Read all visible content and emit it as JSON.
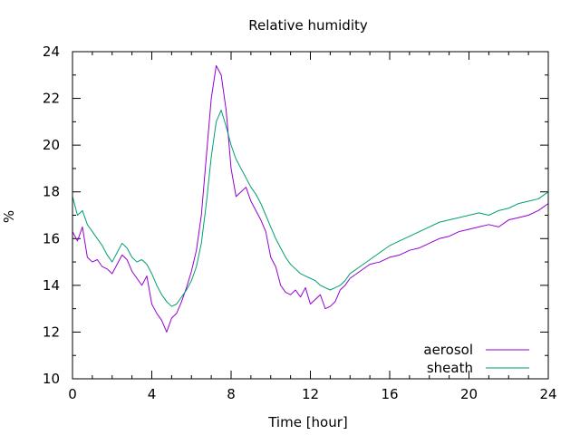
{
  "chart_data": {
    "type": "line",
    "title": "Relative humidity",
    "xlabel": "Time [hour]",
    "ylabel": "%",
    "xlim": [
      0,
      24
    ],
    "ylim": [
      10,
      24
    ],
    "x_ticks": [
      0,
      4,
      8,
      12,
      16,
      20,
      24
    ],
    "y_ticks": [
      10,
      12,
      14,
      16,
      18,
      20,
      22,
      24
    ],
    "grid": false,
    "legend_position": "bottom-right",
    "series": [
      {
        "name": "aerosol",
        "color": "#9400d3",
        "x": [
          0,
          0.25,
          0.5,
          0.75,
          1,
          1.25,
          1.5,
          1.75,
          2,
          2.25,
          2.5,
          2.75,
          3,
          3.25,
          3.5,
          3.75,
          4,
          4.25,
          4.5,
          4.75,
          5,
          5.25,
          5.5,
          5.75,
          6,
          6.25,
          6.5,
          6.75,
          7,
          7.25,
          7.5,
          7.75,
          8,
          8.25,
          8.5,
          8.75,
          9,
          9.25,
          9.5,
          9.75,
          10,
          10.25,
          10.5,
          10.75,
          11,
          11.25,
          11.5,
          11.75,
          12,
          12.25,
          12.5,
          12.75,
          13,
          13.25,
          13.5,
          13.75,
          14,
          14.5,
          15,
          15.5,
          16,
          16.5,
          17,
          17.5,
          18,
          18.5,
          19,
          19.5,
          20,
          20.5,
          21,
          21.5,
          22,
          22.5,
          23,
          23.5,
          24
        ],
        "y": [
          16.3,
          15.9,
          16.5,
          15.2,
          15.0,
          15.1,
          14.8,
          14.7,
          14.5,
          14.9,
          15.3,
          15.1,
          14.6,
          14.3,
          14.0,
          14.4,
          13.2,
          12.8,
          12.5,
          12.0,
          12.6,
          12.8,
          13.3,
          13.9,
          14.6,
          15.5,
          17.0,
          19.5,
          22.0,
          23.4,
          23.0,
          21.5,
          19.0,
          17.8,
          18.0,
          18.2,
          17.6,
          17.2,
          16.8,
          16.3,
          15.2,
          14.8,
          14.0,
          13.7,
          13.6,
          13.8,
          13.5,
          13.9,
          13.2,
          13.4,
          13.6,
          13.0,
          13.1,
          13.3,
          13.8,
          14.0,
          14.3,
          14.6,
          14.9,
          15.0,
          15.2,
          15.3,
          15.5,
          15.6,
          15.8,
          16.0,
          16.1,
          16.3,
          16.4,
          16.5,
          16.6,
          16.5,
          16.8,
          16.9,
          17.0,
          17.2,
          17.5
        ]
      },
      {
        "name": "sheath",
        "color": "#009e73",
        "x": [
          0,
          0.25,
          0.5,
          0.75,
          1,
          1.25,
          1.5,
          1.75,
          2,
          2.25,
          2.5,
          2.75,
          3,
          3.25,
          3.5,
          3.75,
          4,
          4.25,
          4.5,
          4.75,
          5,
          5.25,
          5.5,
          5.75,
          6,
          6.25,
          6.5,
          6.75,
          7,
          7.25,
          7.5,
          7.75,
          8,
          8.25,
          8.5,
          8.75,
          9,
          9.25,
          9.5,
          9.75,
          10,
          10.25,
          10.5,
          10.75,
          11,
          11.25,
          11.5,
          11.75,
          12,
          12.25,
          12.5,
          12.75,
          13,
          13.25,
          13.5,
          13.75,
          14,
          14.5,
          15,
          15.5,
          16,
          16.5,
          17,
          17.5,
          18,
          18.5,
          19,
          19.5,
          20,
          20.5,
          21,
          21.5,
          22,
          22.5,
          23,
          23.5,
          24
        ],
        "y": [
          17.8,
          17.0,
          17.2,
          16.6,
          16.3,
          16.0,
          15.7,
          15.3,
          15.0,
          15.4,
          15.8,
          15.6,
          15.2,
          15.0,
          15.1,
          14.9,
          14.5,
          14.0,
          13.6,
          13.3,
          13.1,
          13.2,
          13.5,
          13.8,
          14.2,
          14.8,
          15.8,
          17.5,
          19.5,
          21.0,
          21.5,
          20.8,
          20.0,
          19.4,
          19.0,
          18.6,
          18.2,
          17.9,
          17.5,
          17.0,
          16.5,
          16.0,
          15.6,
          15.2,
          14.9,
          14.7,
          14.5,
          14.4,
          14.3,
          14.2,
          14.0,
          13.9,
          13.8,
          13.9,
          14.0,
          14.2,
          14.5,
          14.8,
          15.1,
          15.4,
          15.7,
          15.9,
          16.1,
          16.3,
          16.5,
          16.7,
          16.8,
          16.9,
          17.0,
          17.1,
          17.0,
          17.2,
          17.3,
          17.5,
          17.6,
          17.7,
          18.0
        ]
      }
    ]
  }
}
